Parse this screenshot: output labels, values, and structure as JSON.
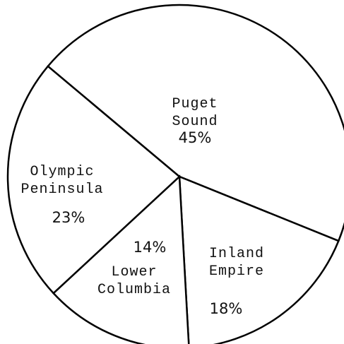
{
  "chart_data": {
    "type": "pie",
    "categories": [
      "Puget Sound",
      "Inland Empire",
      "Lower Columbia",
      "Olympic Peninsula"
    ],
    "values": [
      45,
      18,
      14,
      23
    ],
    "value_labels": [
      "45%",
      "18%",
      "14%",
      "23%"
    ],
    "color": "#ffffff"
  }
}
